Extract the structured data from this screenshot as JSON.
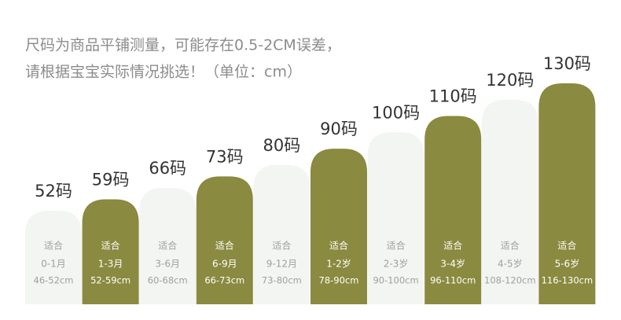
{
  "chart_data": {
    "type": "bar",
    "title": "尺码为商品平铺测量，可能存在0.5-2CM误差，",
    "subtitle": "请根据宝宝实际情况挑选！（单位：cm）",
    "categories": [
      "适合",
      "适合",
      "适合",
      "适合",
      "适合",
      "适合",
      "适合",
      "适合",
      "适合",
      "适合"
    ],
    "values": [
      52,
      59,
      66,
      73,
      80,
      90,
      100,
      110,
      120,
      130
    ],
    "value_labels": [
      "52码",
      "59码",
      "66码",
      "73码",
      "80码",
      "90码",
      "100码",
      "110码",
      "120码",
      "130码"
    ],
    "ages": [
      "0-1月",
      "1-3月",
      "3-6月",
      "6-9月",
      "9-12月",
      "1-2岁",
      "2-3岁",
      "3-4岁",
      "4-5岁",
      "5-6岁"
    ],
    "heights": [
      "46-52cm",
      "52-59cm",
      "60-68cm",
      "66-73cm",
      "73-80cm",
      "78-90cm",
      "90-100cm",
      "96-110cm",
      "108-120cm",
      "116-130cm"
    ],
    "colors": [
      "#f2f5f2",
      "#8a8a40",
      "#f2f5f2",
      "#8a8a40",
      "#f2f5f2",
      "#8a8a40",
      "#f2f5f2",
      "#8a8a40",
      "#f2f5f2",
      "#8a8a40"
    ]
  }
}
